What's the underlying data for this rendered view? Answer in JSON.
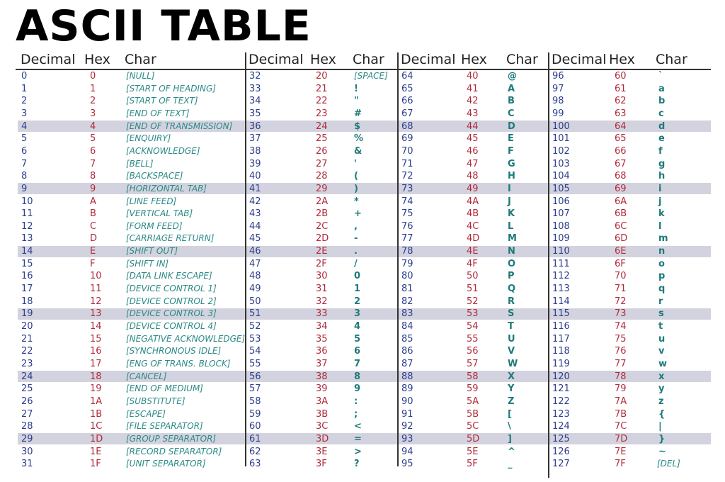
{
  "title": "ASCII TABLE",
  "header": {
    "decimal": "Decimal",
    "hex": "Hex",
    "char": "Char"
  },
  "columns": [
    {
      "rows": [
        {
          "d": "0",
          "h": "0",
          "c": "[NULL]"
        },
        {
          "d": "1",
          "h": "1",
          "c": "[START OF HEADING]"
        },
        {
          "d": "2",
          "h": "2",
          "c": "[START OF TEXT]"
        },
        {
          "d": "3",
          "h": "3",
          "c": "[END OF TEXT]"
        },
        {
          "d": "4",
          "h": "4",
          "c": "[END OF TRANSMISSION]"
        },
        {
          "d": "5",
          "h": "5",
          "c": "[ENQUIRY]"
        },
        {
          "d": "6",
          "h": "6",
          "c": "[ACKNOWLEDGE]"
        },
        {
          "d": "7",
          "h": "7",
          "c": "[BELL]"
        },
        {
          "d": "8",
          "h": "8",
          "c": "[BACKSPACE]"
        },
        {
          "d": "9",
          "h": "9",
          "c": "[HORIZONTAL TAB]"
        },
        {
          "d": "10",
          "h": "A",
          "c": "[LINE FEED]"
        },
        {
          "d": "11",
          "h": "B",
          "c": "[VERTICAL TAB]"
        },
        {
          "d": "12",
          "h": "C",
          "c": "[FORM FEED]"
        },
        {
          "d": "13",
          "h": "D",
          "c": "[CARRIAGE RETURN]"
        },
        {
          "d": "14",
          "h": "E",
          "c": "[SHIFT OUT]"
        },
        {
          "d": "15",
          "h": "F",
          "c": "[SHIFT IN]"
        },
        {
          "d": "16",
          "h": "10",
          "c": "[DATA LINK ESCAPE]"
        },
        {
          "d": "17",
          "h": "11",
          "c": "[DEVICE CONTROL 1]"
        },
        {
          "d": "18",
          "h": "12",
          "c": "[DEVICE CONTROL 2]"
        },
        {
          "d": "19",
          "h": "13",
          "c": "[DEVICE CONTROL 3]"
        },
        {
          "d": "20",
          "h": "14",
          "c": "[DEVICE CONTROL 4]"
        },
        {
          "d": "21",
          "h": "15",
          "c": "[NEGATIVE ACKNOWLEDGE]"
        },
        {
          "d": "22",
          "h": "16",
          "c": "[SYNCHRONOUS IDLE]"
        },
        {
          "d": "23",
          "h": "17",
          "c": "[ENG OF TRANS. BLOCK]"
        },
        {
          "d": "24",
          "h": "18",
          "c": "[CANCEL]"
        },
        {
          "d": "25",
          "h": "19",
          "c": "[END OF MEDIUM]"
        },
        {
          "d": "26",
          "h": "1A",
          "c": "[SUBSTITUTE]"
        },
        {
          "d": "27",
          "h": "1B",
          "c": "[ESCAPE]"
        },
        {
          "d": "28",
          "h": "1C",
          "c": "[FILE SEPARATOR]"
        },
        {
          "d": "29",
          "h": "1D",
          "c": "[GROUP SEPARATOR]"
        },
        {
          "d": "30",
          "h": "1E",
          "c": "[RECORD SEPARATOR]"
        },
        {
          "d": "31",
          "h": "1F",
          "c": "[UNIT SEPARATOR]"
        }
      ]
    },
    {
      "rows": [
        {
          "d": "32",
          "h": "20",
          "c": "[SPACE]"
        },
        {
          "d": "33",
          "h": "21",
          "c": "!"
        },
        {
          "d": "34",
          "h": "22",
          "c": "\""
        },
        {
          "d": "35",
          "h": "23",
          "c": "#"
        },
        {
          "d": "36",
          "h": "24",
          "c": "$"
        },
        {
          "d": "37",
          "h": "25",
          "c": "%"
        },
        {
          "d": "38",
          "h": "26",
          "c": "&"
        },
        {
          "d": "39",
          "h": "27",
          "c": "'"
        },
        {
          "d": "40",
          "h": "28",
          "c": "("
        },
        {
          "d": "41",
          "h": "29",
          "c": ")"
        },
        {
          "d": "42",
          "h": "2A",
          "c": "*"
        },
        {
          "d": "43",
          "h": "2B",
          "c": "+"
        },
        {
          "d": "44",
          "h": "2C",
          "c": ","
        },
        {
          "d": "45",
          "h": "2D",
          "c": "-"
        },
        {
          "d": "46",
          "h": "2E",
          "c": "."
        },
        {
          "d": "47",
          "h": "2F",
          "c": "/"
        },
        {
          "d": "48",
          "h": "30",
          "c": "0"
        },
        {
          "d": "49",
          "h": "31",
          "c": "1"
        },
        {
          "d": "50",
          "h": "32",
          "c": "2"
        },
        {
          "d": "51",
          "h": "33",
          "c": "3"
        },
        {
          "d": "52",
          "h": "34",
          "c": "4"
        },
        {
          "d": "53",
          "h": "35",
          "c": "5"
        },
        {
          "d": "54",
          "h": "36",
          "c": "6"
        },
        {
          "d": "55",
          "h": "37",
          "c": "7"
        },
        {
          "d": "56",
          "h": "38",
          "c": "8"
        },
        {
          "d": "57",
          "h": "39",
          "c": "9"
        },
        {
          "d": "58",
          "h": "3A",
          "c": ":"
        },
        {
          "d": "59",
          "h": "3B",
          "c": ";"
        },
        {
          "d": "60",
          "h": "3C",
          "c": "<"
        },
        {
          "d": "61",
          "h": "3D",
          "c": "="
        },
        {
          "d": "62",
          "h": "3E",
          "c": ">"
        },
        {
          "d": "63",
          "h": "3F",
          "c": "?"
        }
      ]
    },
    {
      "rows": [
        {
          "d": "64",
          "h": "40",
          "c": "@"
        },
        {
          "d": "65",
          "h": "41",
          "c": "A"
        },
        {
          "d": "66",
          "h": "42",
          "c": "B"
        },
        {
          "d": "67",
          "h": "43",
          "c": "C"
        },
        {
          "d": "68",
          "h": "44",
          "c": "D"
        },
        {
          "d": "69",
          "h": "45",
          "c": "E"
        },
        {
          "d": "70",
          "h": "46",
          "c": "F"
        },
        {
          "d": "71",
          "h": "47",
          "c": "G"
        },
        {
          "d": "72",
          "h": "48",
          "c": "H"
        },
        {
          "d": "73",
          "h": "49",
          "c": "I"
        },
        {
          "d": "74",
          "h": "4A",
          "c": "J"
        },
        {
          "d": "75",
          "h": "4B",
          "c": "K"
        },
        {
          "d": "76",
          "h": "4C",
          "c": "L"
        },
        {
          "d": "77",
          "h": "4D",
          "c": "M"
        },
        {
          "d": "78",
          "h": "4E",
          "c": "N"
        },
        {
          "d": "79",
          "h": "4F",
          "c": "O"
        },
        {
          "d": "80",
          "h": "50",
          "c": "P"
        },
        {
          "d": "81",
          "h": "51",
          "c": "Q"
        },
        {
          "d": "82",
          "h": "52",
          "c": "R"
        },
        {
          "d": "83",
          "h": "53",
          "c": "S"
        },
        {
          "d": "84",
          "h": "54",
          "c": "T"
        },
        {
          "d": "85",
          "h": "55",
          "c": "U"
        },
        {
          "d": "86",
          "h": "56",
          "c": "V"
        },
        {
          "d": "87",
          "h": "57",
          "c": "W"
        },
        {
          "d": "88",
          "h": "58",
          "c": "X"
        },
        {
          "d": "89",
          "h": "59",
          "c": "Y"
        },
        {
          "d": "90",
          "h": "5A",
          "c": "Z"
        },
        {
          "d": "91",
          "h": "5B",
          "c": "["
        },
        {
          "d": "92",
          "h": "5C",
          "c": "\\"
        },
        {
          "d": "93",
          "h": "5D",
          "c": "]"
        },
        {
          "d": "94",
          "h": "5E",
          "c": "^"
        },
        {
          "d": "95",
          "h": "5F",
          "c": "_"
        }
      ]
    },
    {
      "rows": [
        {
          "d": "96",
          "h": "60",
          "c": "`"
        },
        {
          "d": "97",
          "h": "61",
          "c": "a"
        },
        {
          "d": "98",
          "h": "62",
          "c": "b"
        },
        {
          "d": "99",
          "h": "63",
          "c": "c"
        },
        {
          "d": "100",
          "h": "64",
          "c": "d"
        },
        {
          "d": "101",
          "h": "65",
          "c": "e"
        },
        {
          "d": "102",
          "h": "66",
          "c": "f"
        },
        {
          "d": "103",
          "h": "67",
          "c": "g"
        },
        {
          "d": "104",
          "h": "68",
          "c": "h"
        },
        {
          "d": "105",
          "h": "69",
          "c": "i"
        },
        {
          "d": "106",
          "h": "6A",
          "c": "j"
        },
        {
          "d": "107",
          "h": "6B",
          "c": "k"
        },
        {
          "d": "108",
          "h": "6C",
          "c": "l"
        },
        {
          "d": "109",
          "h": "6D",
          "c": "m"
        },
        {
          "d": "110",
          "h": "6E",
          "c": "n"
        },
        {
          "d": "111",
          "h": "6F",
          "c": "o"
        },
        {
          "d": "112",
          "h": "70",
          "c": "p"
        },
        {
          "d": "113",
          "h": "71",
          "c": "q"
        },
        {
          "d": "114",
          "h": "72",
          "c": "r"
        },
        {
          "d": "115",
          "h": "73",
          "c": "s"
        },
        {
          "d": "116",
          "h": "74",
          "c": "t"
        },
        {
          "d": "117",
          "h": "75",
          "c": "u"
        },
        {
          "d": "118",
          "h": "76",
          "c": "v"
        },
        {
          "d": "119",
          "h": "77",
          "c": "w"
        },
        {
          "d": "120",
          "h": "78",
          "c": "x"
        },
        {
          "d": "121",
          "h": "79",
          "c": "y"
        },
        {
          "d": "122",
          "h": "7A",
          "c": "z"
        },
        {
          "d": "123",
          "h": "7B",
          "c": "{"
        },
        {
          "d": "124",
          "h": "7C",
          "c": "|"
        },
        {
          "d": "125",
          "h": "7D",
          "c": "}"
        },
        {
          "d": "126",
          "h": "7E",
          "c": "~"
        },
        {
          "d": "127",
          "h": "7F",
          "c": "[DEL]"
        }
      ]
    }
  ],
  "colors": {
    "decimal": "#2c3e8c",
    "hex": "#b22a3a",
    "char": "#1e7a7a",
    "band": "#d3d3df"
  }
}
